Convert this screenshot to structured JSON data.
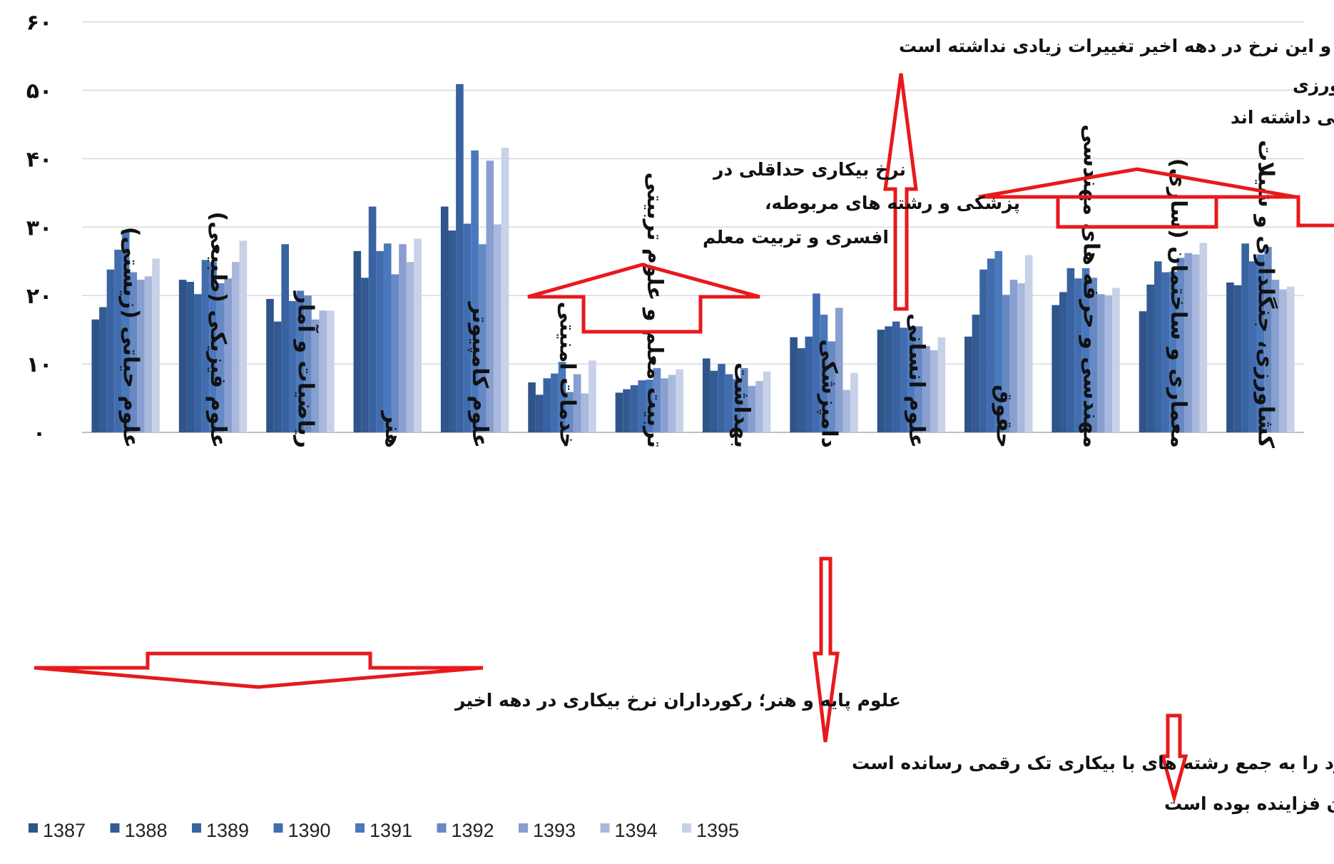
{
  "chart_data": {
    "type": "bar",
    "ylim": [
      0,
      60
    ],
    "ytick_labels": [
      "۰",
      "۱۰",
      "۲۰",
      "۳۰",
      "۴۰",
      "۵۰",
      "۶۰"
    ],
    "categories": [
      "علوم حیاتی (زیستی)",
      "علوم فیزیکی (طبیعی)",
      "ریاضیات و آمار",
      "هنر",
      "علوم کامپیوتر",
      "خدمات امنیتی",
      "تربیت معلم و علوم تربیتی",
      "بهداشت",
      "دامپزشکی",
      "علوم انسانی",
      "حقوق",
      "مهندسی و حرفه های مهندسی",
      "معماری و ساختمان (سازی)",
      "کشاورزی، جنگلداری و شیلات"
    ],
    "series": [
      {
        "name": "1387",
        "color": "#2f5489",
        "values": [
          16.5,
          22.3,
          19.5,
          26.5,
          33,
          7.3,
          5.8,
          10.8,
          13.9,
          15,
          14,
          18.6,
          17.7,
          21.9
        ]
      },
      {
        "name": "1388",
        "color": "#335a92",
        "values": [
          18.3,
          22,
          16.2,
          22.6,
          29.5,
          5.5,
          6.3,
          9,
          12.3,
          15.5,
          17.2,
          20.5,
          21.6,
          21.5
        ]
      },
      {
        "name": "1389",
        "color": "#3962a0",
        "values": [
          23.8,
          20.2,
          27.5,
          33,
          50.9,
          7.9,
          6.9,
          10,
          14,
          16.2,
          23.8,
          24,
          25,
          27.6
        ]
      },
      {
        "name": "1390",
        "color": "#416daf",
        "values": [
          26.7,
          25.2,
          19.2,
          26.5,
          30.5,
          8.6,
          7.6,
          8.5,
          20.3,
          15.3,
          25.4,
          22.5,
          23.4,
          25
        ]
      },
      {
        "name": "1391",
        "color": "#4a78bc",
        "values": [
          29.6,
          24.9,
          20.7,
          27.6,
          41.2,
          10.3,
          7.7,
          7.8,
          17.2,
          15.2,
          26.5,
          24,
          23.5,
          26
        ]
      },
      {
        "name": "1392",
        "color": "#6689c4",
        "values": [
          23.4,
          21.8,
          20,
          23.1,
          27.5,
          5.9,
          9.4,
          9.4,
          13.3,
          15.5,
          20.1,
          22.6,
          25.5,
          27.1
        ]
      },
      {
        "name": "1393",
        "color": "#889fcf",
        "values": [
          22.3,
          22.5,
          16.5,
          27.5,
          39.7,
          8.5,
          7.9,
          6.8,
          18.2,
          12.6,
          22.3,
          20.2,
          26.2,
          22.3
        ]
      },
      {
        "name": "1394",
        "color": "#a9b8dc",
        "values": [
          22.8,
          24.9,
          17.8,
          24.9,
          30.4,
          5.7,
          8.4,
          7.5,
          6.2,
          12,
          21.8,
          20,
          26,
          20.9
        ]
      },
      {
        "name": "1395",
        "color": "#c7d1e8",
        "values": [
          25.4,
          28,
          17.8,
          28.3,
          41.6,
          10.5,
          9.2,
          8.9,
          8.7,
          13.9,
          25.9,
          21.1,
          27.7,
          21.3
        ]
      }
    ],
    "grid": true,
    "legend_position": "bottom-left",
    "annotations": [
      "علوم انسانی نرخ بیکاری متوسطی داشته و این نرخ در دهه اخیر تغییرات زیادی نداشته است",
      "مهندسی ها، حقوق و معماری و کشاورزی",
      "هم بیکاری نسبتا بالایی داشته اند",
      "نرخ بیکاری حداقلی در",
      "پزشکی و رشته های مربوطه،",
      "افسری و تربیت معلم",
      "علوم پایه و هنر؛ رکورداران نرخ بیکاری در دهه اخیر",
      "دامپزشکی در سال های اخیر خود را به جمع رشته های با بیکاری تک رقمی رسانده است",
      "نرخ بیکاری عمران فزاینده بوده است"
    ]
  },
  "colors": {
    "arrow": "#e8191c",
    "gridline": "#d9d9d9"
  }
}
